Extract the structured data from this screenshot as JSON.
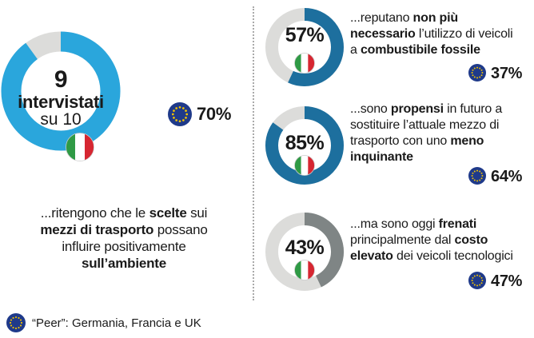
{
  "chart_data": [
    {
      "type": "pie",
      "name": "main-donut",
      "value": 90,
      "max": 100,
      "number": "9",
      "label": "intervistati",
      "sublabel": "su 10",
      "eu_value": "70%",
      "description": [
        [
          {
            "t": "...ritengono che le ",
            "b": false
          },
          {
            "t": "scelte",
            "b": true
          },
          {
            "t": " sui",
            "b": false
          }
        ],
        [
          {
            "t": "mezzi di trasporto",
            "b": true
          },
          {
            "t": " possano",
            "b": false
          }
        ],
        [
          {
            "t": "influire positivamente",
            "b": false
          }
        ],
        [
          {
            "t": "sull’ambiente",
            "b": true
          }
        ]
      ]
    },
    {
      "type": "pie",
      "name": "donut-1",
      "value": 57,
      "pct_label": "57%",
      "eu_value": "37%",
      "description": [
        [
          {
            "t": "...reputano ",
            "b": false
          },
          {
            "t": "non più",
            "b": true
          }
        ],
        [
          {
            "t": "necessario",
            "b": true
          },
          {
            "t": " l’utilizzo di veicoli",
            "b": false
          }
        ],
        [
          {
            "t": "a ",
            "b": false
          },
          {
            "t": "combustibile fossile",
            "b": true
          }
        ]
      ]
    },
    {
      "type": "pie",
      "name": "donut-2",
      "value": 85,
      "pct_label": "85%",
      "eu_value": "64%",
      "description": [
        [
          {
            "t": "...sono ",
            "b": false
          },
          {
            "t": "propensi",
            "b": true
          },
          {
            "t": " in futuro a",
            "b": false
          }
        ],
        [
          {
            "t": "sostituire l’attuale mezzo di",
            "b": false
          }
        ],
        [
          {
            "t": "trasporto con uno ",
            "b": false
          },
          {
            "t": "meno",
            "b": true
          }
        ],
        [
          {
            "t": "inquinante",
            "b": true
          }
        ]
      ]
    },
    {
      "type": "pie",
      "name": "donut-3",
      "value": 43,
      "pct_label": "43%",
      "eu_value": "47%",
      "description": [
        [
          {
            "t": "...ma sono oggi ",
            "b": false
          },
          {
            "t": "frenati",
            "b": true
          }
        ],
        [
          {
            "t": "principalmente dal ",
            "b": false
          },
          {
            "t": "costo",
            "b": true
          }
        ],
        [
          {
            "t": "elevato",
            "b": true
          },
          {
            "t": " dei veicoli tecnologici",
            "b": false
          }
        ]
      ]
    }
  ],
  "footer": {
    "note": "“Peer”: Germania, Francia e UK"
  },
  "colors": {
    "main_fill": "#2aa6dc",
    "small_fill": "#1d6f9e",
    "grey_fill": "#7f8585",
    "track": "#dcdcda",
    "eu_blue": "#1f3a8a",
    "eu_star": "#f2c300",
    "flag_green": "#2f9a45",
    "flag_red": "#d62631"
  }
}
